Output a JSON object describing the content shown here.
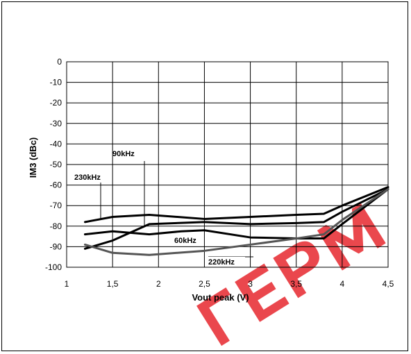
{
  "chart_data": {
    "type": "line",
    "title": "",
    "xlabel": "Vout peak (V)",
    "ylabel": "IM3  (dBc)",
    "xlim": [
      1,
      4.5
    ],
    "ylim": [
      -100,
      0
    ],
    "x_ticks": [
      "1",
      "1,5",
      "2",
      "2,5",
      "3",
      "3,5",
      "4",
      "4,5"
    ],
    "y_ticks": [
      "0",
      "-10",
      "-20",
      "-30",
      "-40",
      "-50",
      "-60",
      "-70",
      "-80",
      "-90",
      "-100"
    ],
    "grid": true,
    "series": [
      {
        "name": "230kHz",
        "color": "#000000",
        "x": [
          1.2,
          1.5,
          1.9,
          2.5,
          3.0,
          3.5,
          3.8,
          4.0,
          4.5
        ],
        "y": [
          -78,
          -75.5,
          -74.5,
          -76.5,
          -75.5,
          -74.5,
          -74,
          -70,
          -61
        ]
      },
      {
        "name": "90kHz",
        "color": "#000000",
        "x": [
          1.2,
          1.5,
          1.9,
          2.5,
          3.0,
          3.5,
          3.8,
          4.0,
          4.5
        ],
        "y": [
          -91,
          -87,
          -79,
          -78,
          -79,
          -78.5,
          -78,
          -73,
          -62
        ]
      },
      {
        "name": "60kHz",
        "color": "#000000",
        "x": [
          1.2,
          1.5,
          1.9,
          2.25,
          2.5,
          3.0,
          3.5,
          3.8,
          4.0,
          4.5
        ],
        "y": [
          -84,
          -82.5,
          -84,
          -82.5,
          -82,
          -85.5,
          -86,
          -86,
          -79,
          -62
        ]
      },
      {
        "name": "220kHz",
        "color": "#555555",
        "x": [
          1.2,
          1.5,
          1.9,
          2.5,
          3.0,
          3.5,
          3.8,
          4.0,
          4.5
        ],
        "y": [
          -89,
          -93,
          -94,
          -92,
          -89,
          -86,
          -84,
          -77,
          -62
        ]
      }
    ],
    "annotations": [
      {
        "text": "230kHz",
        "series": "230kHz"
      },
      {
        "text": "90kHz",
        "series": "90kHz"
      },
      {
        "text": "60kHz",
        "series": "60kHz"
      },
      {
        "text": "220kHz",
        "series": "220kHz"
      }
    ]
  },
  "watermark": {
    "text": "ГЕРМ",
    "color": "#e8343a"
  }
}
